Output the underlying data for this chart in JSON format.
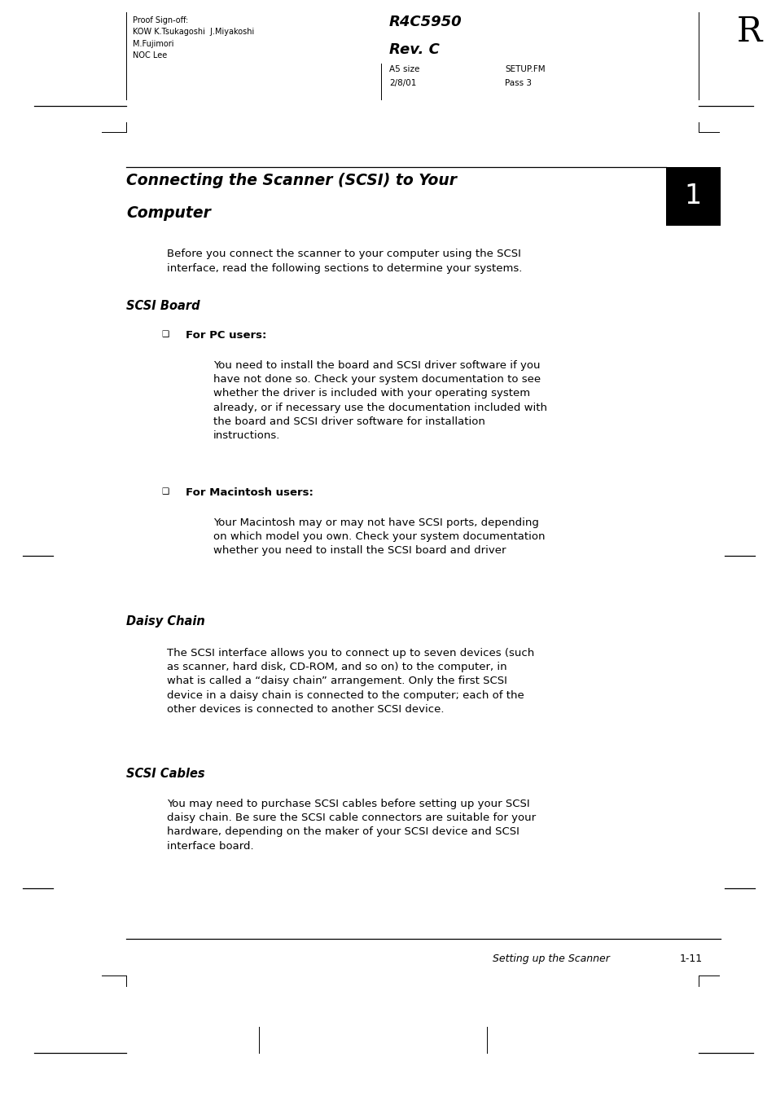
{
  "bg_color": "#ffffff",
  "page_width": 9.54,
  "page_height": 13.51,
  "proof_text": "Proof Sign-off:\nKOW K.Tsukagoshi  J.Miyakoshi\nM.Fujimori\nNOC Lee",
  "r4c_line1": "R4C5950",
  "r4c_line2": "Rev. C",
  "sub1a": "A5 size",
  "sub1b": "2/8/01",
  "sub2a": "SETUP.FM",
  "sub2b": "Pass 3",
  "big_R": "R",
  "chapter_title_line1": "Connecting the Scanner (SCSI) to Your",
  "chapter_title_line2": "Computer",
  "chapter_num": "1",
  "intro_text": "Before you connect the scanner to your computer using the SCSI\ninterface, read the following sections to determine your systems.",
  "section1_title": "SCSI Board",
  "bullet1_label": "For PC users:",
  "bullet1_text": "You need to install the board and SCSI driver software if you\nhave not done so. Check your system documentation to see\nwhether the driver is included with your operating system\nalready, or if necessary use the documentation included with\nthe board and SCSI driver software for installation\ninstructions.",
  "bullet2_label": "For Macintosh users:",
  "bullet2_text": "Your Macintosh may or may not have SCSI ports, depending\non which model you own. Check your system documentation\nwhether you need to install the SCSI board and driver",
  "section2_title": "Daisy Chain",
  "section2_text": "The SCSI interface allows you to connect up to seven devices (such\nas scanner, hard disk, CD-ROM, and so on) to the computer, in\nwhat is called a “daisy chain” arrangement. Only the first SCSI\ndevice in a daisy chain is connected to the computer; each of the\nother devices is connected to another SCSI device.",
  "section3_title": "SCSI Cables",
  "section3_text": "You may need to purchase SCSI cables before setting up your SCSI\ndaisy chain. Be sure the SCSI cable connectors are suitable for your\nhardware, depending on the maker of your SCSI device and SCSI\ninterface board.",
  "footer_italic": "Setting up the Scanner",
  "footer_num": "1-11"
}
